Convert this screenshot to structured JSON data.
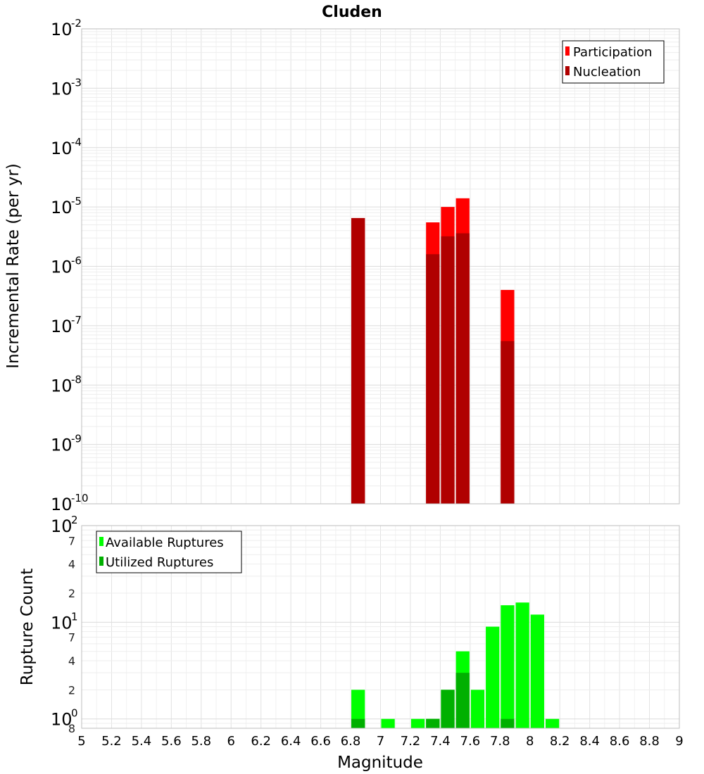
{
  "chart_data": [
    {
      "type": "bar",
      "title": "Cluden",
      "ylabel": "Incremental Rate (per yr)",
      "xlabel": "",
      "yscale": "log",
      "ylim": [
        1e-10,
        0.01
      ],
      "xlim": [
        5,
        9
      ],
      "grid": true,
      "legend_position": "top-right",
      "y_decade_labels": [
        {
          "base": "10",
          "exp": "-10"
        },
        {
          "base": "10",
          "exp": "-9"
        },
        {
          "base": "10",
          "exp": "-8"
        },
        {
          "base": "10",
          "exp": "-7"
        },
        {
          "base": "10",
          "exp": "-6"
        },
        {
          "base": "10",
          "exp": "-5"
        },
        {
          "base": "10",
          "exp": "-4"
        },
        {
          "base": "10",
          "exp": "-3"
        },
        {
          "base": "10",
          "exp": "-2"
        }
      ],
      "series": [
        {
          "name": "Participation",
          "color": "#ff0000",
          "x": [
            6.85,
            7.35,
            7.45,
            7.55,
            7.85
          ],
          "values": [
            6.5e-06,
            5.5e-06,
            1e-05,
            1.4e-05,
            4e-07
          ]
        },
        {
          "name": "Nucleation",
          "color": "#b00000",
          "x": [
            6.85,
            7.35,
            7.45,
            7.55,
            7.85
          ],
          "values": [
            6.5e-06,
            1.6e-06,
            3.2e-06,
            3.6e-06,
            5.5e-08
          ]
        }
      ]
    },
    {
      "type": "bar",
      "ylabel": "Rupture Count",
      "xlabel": "Magnitude",
      "yscale": "log",
      "ylim": [
        0.8,
        100
      ],
      "xlim": [
        5,
        9
      ],
      "grid": true,
      "legend_position": "top-left",
      "x_ticks": [
        "5",
        "5.2",
        "5.4",
        "5.6",
        "5.8",
        "6",
        "6.2",
        "6.4",
        "6.6",
        "6.8",
        "7",
        "7.2",
        "7.4",
        "7.6",
        "7.8",
        "8",
        "8.2",
        "8.4",
        "8.6",
        "8.8",
        "9"
      ],
      "y_decade_labels": [
        {
          "base": "10",
          "exp": "0"
        },
        {
          "base": "10",
          "exp": "1"
        },
        {
          "base": "10",
          "exp": "2"
        }
      ],
      "y_minor_labels": [
        "8",
        "2",
        "4",
        "7",
        "2",
        "4",
        "7"
      ],
      "series": [
        {
          "name": "Available Ruptures",
          "color": "#00ff00",
          "x": [
            6.85,
            7.05,
            7.25,
            7.35,
            7.45,
            7.55,
            7.65,
            7.75,
            7.85,
            7.95,
            8.05,
            8.15
          ],
          "values": [
            2,
            1,
            1,
            1,
            2,
            5,
            2,
            9,
            15,
            16,
            12,
            1
          ]
        },
        {
          "name": "Utilized Ruptures",
          "color": "#00b000",
          "x": [
            6.85,
            7.35,
            7.45,
            7.55,
            7.85
          ],
          "values": [
            1,
            1,
            2,
            3,
            1
          ]
        }
      ]
    }
  ]
}
